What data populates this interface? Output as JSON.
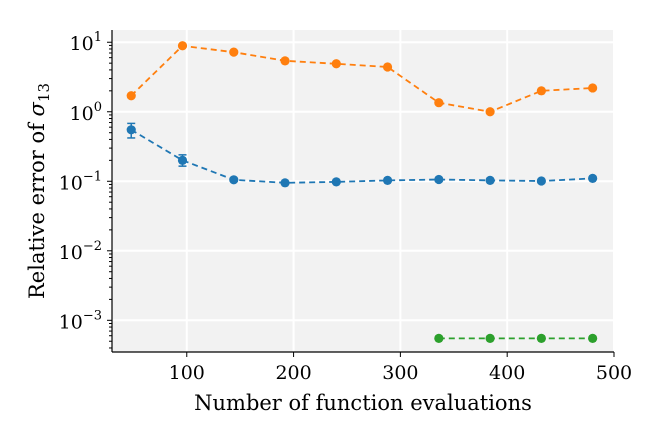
{
  "chart_data": {
    "type": "line",
    "title": "",
    "xlabel": "Number of function evaluations",
    "ylabel": {
      "prefix": "Relative error of ",
      "symbol": "σ",
      "subscript": "13"
    },
    "xlim": [
      30,
      500
    ],
    "ylim": [
      0.00035,
      15
    ],
    "yscale": "log",
    "grid": true,
    "legend": "none",
    "background_color": "#f2f2f2",
    "x_ticks": [
      {
        "value": 100,
        "label": "100"
      },
      {
        "value": 200,
        "label": "200"
      },
      {
        "value": 300,
        "label": "300"
      },
      {
        "value": 400,
        "label": "400"
      },
      {
        "value": 500,
        "label": "500"
      }
    ],
    "y_ticks": [
      {
        "value": 10,
        "base": "10",
        "exp": "1"
      },
      {
        "value": 1,
        "base": "10",
        "exp": "0"
      },
      {
        "value": 0.1,
        "base": "10",
        "exp": "−1"
      },
      {
        "value": 0.01,
        "base": "10",
        "exp": "−2"
      },
      {
        "value": 0.001,
        "base": "10",
        "exp": "−3"
      }
    ],
    "series": [
      {
        "color": "#1f77b4",
        "line_style": "dashed",
        "x": [
          48,
          96,
          144,
          192,
          240,
          288,
          336,
          384,
          432,
          480
        ],
        "y": [
          0.55,
          0.2,
          0.105,
          0.095,
          0.098,
          0.103,
          0.106,
          0.103,
          0.101,
          0.11
        ],
        "error_low": [
          0.42,
          0.165,
          0.1,
          0.091,
          0.094,
          0.099,
          0.102,
          0.099,
          0.097,
          0.106
        ],
        "error_high": [
          0.68,
          0.24,
          0.11,
          0.099,
          0.102,
          0.107,
          0.11,
          0.107,
          0.105,
          0.114
        ]
      },
      {
        "color": "#ff7f0e",
        "line_style": "dashed",
        "x": [
          48,
          96,
          144,
          192,
          240,
          288,
          336,
          384,
          432,
          480
        ],
        "y": [
          1.7,
          8.9,
          7.2,
          5.4,
          4.9,
          4.4,
          1.35,
          1.0,
          2.0,
          2.2
        ]
      },
      {
        "color": "#2ca02c",
        "line_style": "dashed",
        "x": [
          336,
          384,
          432,
          480
        ],
        "y": [
          0.00055,
          0.00055,
          0.00055,
          0.00055
        ]
      }
    ]
  }
}
